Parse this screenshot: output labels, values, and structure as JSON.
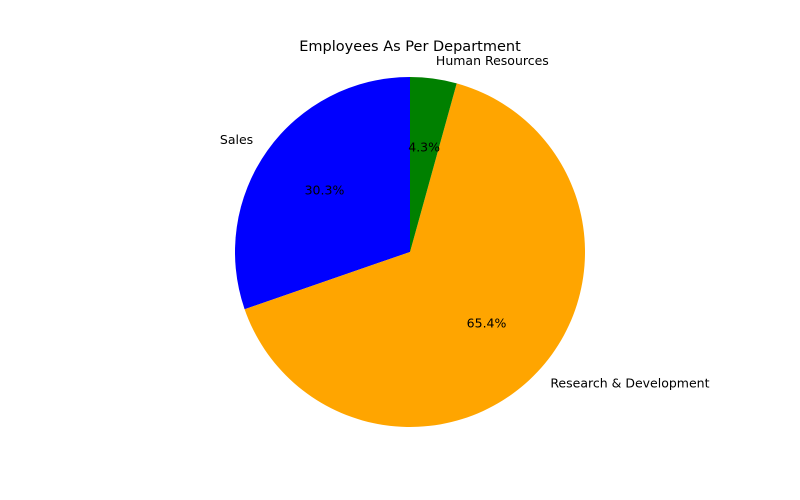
{
  "chart_data": {
    "type": "pie",
    "title": "Employees As Per Department",
    "categories": [
      "Sales",
      "Research & Development",
      "Human Resources"
    ],
    "values": [
      30.3,
      65.4,
      4.3
    ],
    "value_labels": [
      "30.3%",
      "65.4%",
      "4.3%"
    ],
    "colors": [
      "#0000ff",
      "#ffa500",
      "#008000"
    ],
    "start_angle_deg": 90,
    "direction": "counterclockwise",
    "legend": "none"
  }
}
